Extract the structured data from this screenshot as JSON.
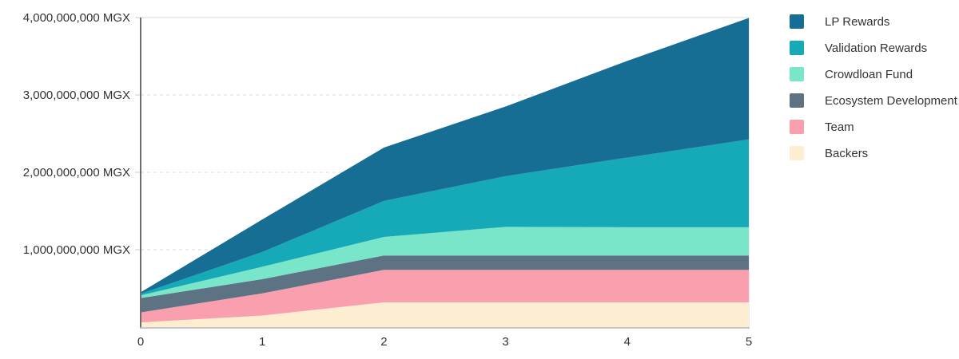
{
  "page": {
    "background": "#ffffff"
  },
  "colors": {
    "axis_line": "#6e6e6e",
    "baseline": "#b5b5b5",
    "gridline": "#d8d8d8",
    "tick_mark": "#cccccc",
    "tick_text": "#333333"
  },
  "chart_data": {
    "type": "area",
    "stacked": true,
    "title": "",
    "xlabel": "",
    "ylabel": "",
    "unit": "MGX",
    "x": [
      0,
      1,
      2,
      3,
      4,
      5
    ],
    "x_tick_labels": [
      "0",
      "1",
      "2",
      "3",
      "4",
      "5"
    ],
    "xlim": [
      0,
      5
    ],
    "ylim": [
      0,
      4000000000
    ],
    "y_tick_values": [
      1000000000,
      2000000000,
      3000000000,
      4000000000
    ],
    "y_tick_labels": [
      "1,000,000,000 MGX",
      "2,000,000,000 MGX",
      "3,000,000,000 MGX",
      "4,000,000,000 MGX"
    ],
    "grid": "dashed-horizontal",
    "legend_position": "right",
    "series": [
      {
        "name": "Backers",
        "color": "#fdeed2",
        "values": [
          60000000,
          150000000,
          320000000,
          320000000,
          320000000,
          320000000
        ]
      },
      {
        "name": "Team",
        "color": "#fa9fae",
        "values": [
          130000000,
          285000000,
          420000000,
          420000000,
          420000000,
          420000000
        ]
      },
      {
        "name": "Ecosystem Development",
        "color": "#5d7383",
        "values": [
          185000000,
          185000000,
          185000000,
          185000000,
          185000000,
          185000000
        ]
      },
      {
        "name": "Crowdloan Fund",
        "color": "#79e6ca",
        "values": [
          35000000,
          160000000,
          240000000,
          370000000,
          365000000,
          365000000
        ]
      },
      {
        "name": "Validation Rewards",
        "color": "#16a9b8",
        "values": [
          20000000,
          190000000,
          465000000,
          655000000,
          900000000,
          1135000000
        ]
      },
      {
        "name": "LP Rewards",
        "color": "#176e94",
        "values": [
          20000000,
          420000000,
          690000000,
          900000000,
          1250000000,
          1570000000
        ]
      }
    ],
    "legend_order": [
      "LP Rewards",
      "Validation Rewards",
      "Crowdloan Fund",
      "Ecosystem Development",
      "Team",
      "Backers"
    ]
  }
}
